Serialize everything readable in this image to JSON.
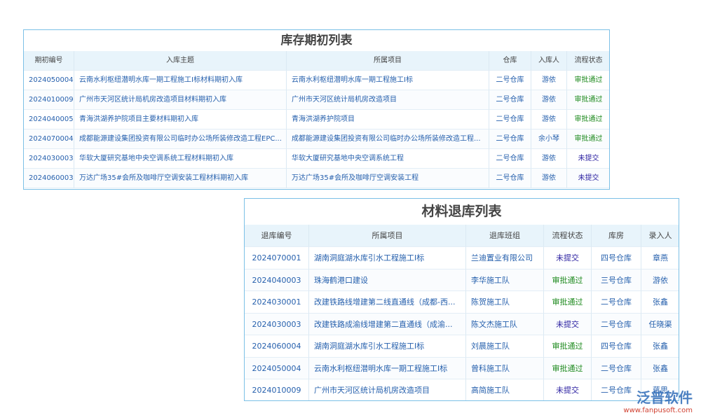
{
  "table1": {
    "title": "库存期初列表",
    "columns": [
      "期初编号",
      "入库主题",
      "所属项目",
      "仓库",
      "入库人",
      "流程状态"
    ],
    "rows": [
      [
        "2024050004",
        "云南水利枢纽潜明水库一期工程施工I标材料期初入库",
        "云南水利枢纽潜明水库一期工程施工I标",
        "二号仓库",
        "游依",
        "审批通过"
      ],
      [
        "2024010009",
        "广州市天河区统计局机房改造项目材料期初入库",
        "广州市天河区统计局机房改造项目",
        "二号仓库",
        "游依",
        "审批通过"
      ],
      [
        "2024040005",
        "青海洪湖养护院项目主要材料期初入库",
        "青海洪湖养护院项目",
        "二号仓库",
        "游依",
        "审批通过"
      ],
      [
        "2024070004",
        "成都能源建设集团投资有限公司临时办公场所装修改造工程EPC...",
        "成都能源建设集团投资有限公司临时办公场所装修改造工程...",
        "二号仓库",
        "余小琴",
        "审批通过"
      ],
      [
        "2024030003",
        "华软大厦研究基地中央空调系统工程材料期初入库",
        "华软大厦研究基地中央空调系统工程",
        "二号仓库",
        "游依",
        "未提交"
      ],
      [
        "2024060003",
        "万达广场35#会所及咖啡厅空调安装工程材料期初入库",
        "万达广场35#会所及咖啡厅空调安装工程",
        "二号仓库",
        "游依",
        "未提交"
      ]
    ],
    "status_colors": [
      "#1e8a1e",
      "#1e8a1e",
      "#1e8a1e",
      "#1e8a1e",
      "#2a1fa0",
      "#2a1fa0"
    ]
  },
  "table2": {
    "title": "材料退库列表",
    "columns": [
      "退库编号",
      "所属项目",
      "退库班组",
      "流程状态",
      "库房",
      "录入人"
    ],
    "rows": [
      [
        "2024070001",
        "湖南洞庭湖水库引水工程施工I标",
        "兰迪置业有限公司",
        "未提交",
        "四号仓库",
        "章燕"
      ],
      [
        "2024040003",
        "珠海鹤港口建设",
        "李华施工队",
        "审批通过",
        "三号仓库",
        "游依"
      ],
      [
        "2024030001",
        "改建铁路线增建第二线直通线（成都-西...",
        "陈贺施工队",
        "审批通过",
        "二号仓库",
        "张鑫"
      ],
      [
        "2024030003",
        "改建铁路成渝线增建第二直通线（成渝...",
        "陈文杰施工队",
        "未提交",
        "二号仓库",
        "任晓渠"
      ],
      [
        "2024060004",
        "湖南洞庭湖水库引水工程施工I标",
        "刘晨施工队",
        "审批通过",
        "四号仓库",
        "张鑫"
      ],
      [
        "2024050004",
        "云南水利枢纽潜明水库一期工程施工I标",
        "曾科施工队",
        "审批通过",
        "二号仓库",
        "张鑫"
      ],
      [
        "2024010009",
        "广州市天河区统计局机房改造项目",
        "高简施工队",
        "未提交",
        "二号仓库",
        "蒋思"
      ]
    ],
    "status_colors": [
      "#2a1fa0",
      "#1e8a1e",
      "#1e8a1e",
      "#2a1fa0",
      "#1e8a1e",
      "#1e8a1e",
      "#2a1fa0"
    ]
  },
  "watermark": {
    "brand": "泛普软件",
    "url": "www.fanpusoft.com"
  }
}
